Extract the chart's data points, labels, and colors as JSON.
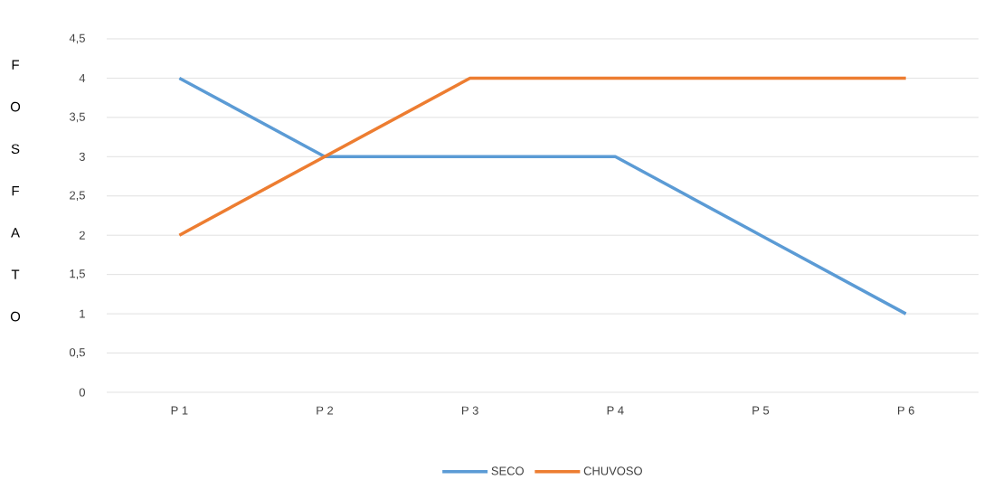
{
  "chart_data": {
    "type": "line",
    "ylabel": "FOSFATO",
    "categories": [
      "P 1",
      "P 2",
      "P 3",
      "P 4",
      "P 5",
      "P 6"
    ],
    "series": [
      {
        "name": "SECO",
        "color": "#5b9bd5",
        "values": [
          4,
          3,
          3,
          3,
          2,
          1
        ]
      },
      {
        "name": "CHUVOSO",
        "color": "#ed7d31",
        "values": [
          2,
          3,
          4,
          4,
          4,
          4
        ]
      }
    ],
    "ylim": [
      0,
      4.5
    ],
    "yticks": [
      0,
      {
        "value": 0.5,
        "label": "0,5"
      },
      1,
      {
        "value": 1.5,
        "label": "1,5"
      },
      2,
      {
        "value": 2.5,
        "label": "2,5"
      },
      3,
      {
        "value": 3.5,
        "label": "3,5"
      },
      4,
      {
        "value": 4.5,
        "label": "4,5"
      }
    ],
    "grid": "y",
    "legend": "bottom"
  }
}
